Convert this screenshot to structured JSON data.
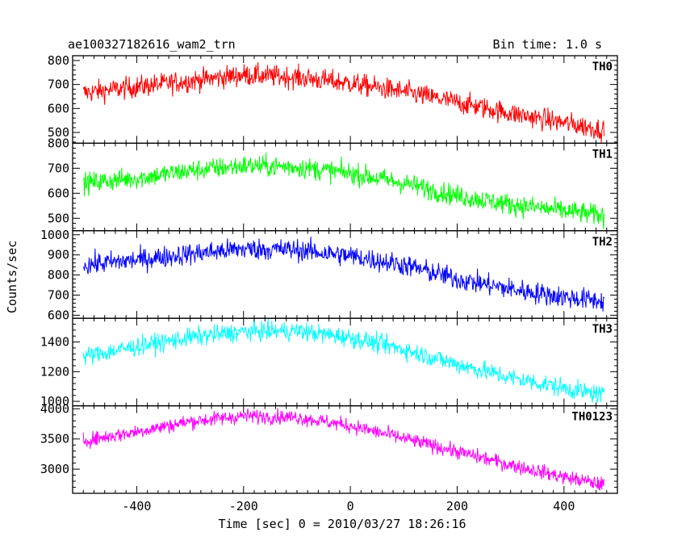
{
  "chart_data": {
    "type": "line",
    "title": "ae100327182616_wam2_trn",
    "subtitle": "Bin time: 1.0 s",
    "xlabel": "Time [sec] 0 = 2010/03/27 18:26:16",
    "ylabel": "Counts/sec",
    "xlim": [
      -520,
      500
    ],
    "xticks": [
      -400,
      -200,
      0,
      200,
      400
    ],
    "x_range": [
      -500,
      475
    ],
    "grid": false,
    "panels": [
      {
        "name": "TH0",
        "color": "#ff0000",
        "ylim": [
          455,
          820
        ],
        "yticks": [
          500,
          600,
          700,
          800
        ],
        "trend_x": [
          -500,
          -400,
          -300,
          -200,
          -100,
          0,
          100,
          200,
          300,
          400,
          475
        ],
        "trend_y": [
          665,
          690,
          715,
          740,
          730,
          705,
          670,
          625,
          580,
          540,
          510
        ],
        "noise": 32
      },
      {
        "name": "TH1",
        "color": "#00ff00",
        "ylim": [
          450,
          800
        ],
        "yticks": [
          500,
          600,
          700,
          800
        ],
        "trend_x": [
          -500,
          -400,
          -300,
          -200,
          -100,
          0,
          100,
          200,
          300,
          400,
          475
        ],
        "trend_y": [
          640,
          660,
          690,
          710,
          705,
          680,
          640,
          590,
          555,
          530,
          510
        ],
        "noise": 30
      },
      {
        "name": "TH2",
        "color": "#0000ff",
        "ylim": [
          585,
          1020
        ],
        "yticks": [
          600,
          700,
          800,
          900,
          1000
        ],
        "trend_x": [
          -500,
          -400,
          -300,
          -200,
          -100,
          0,
          100,
          200,
          300,
          400,
          475
        ],
        "trend_y": [
          850,
          875,
          905,
          930,
          925,
          895,
          850,
          780,
          730,
          690,
          670
        ],
        "noise": 38
      },
      {
        "name": "TH3",
        "color": "#00ffff",
        "ylim": [
          970,
          1560
        ],
        "yticks": [
          1000,
          1200,
          1400
        ],
        "trend_x": [
          -500,
          -400,
          -300,
          -200,
          -100,
          0,
          100,
          200,
          300,
          400,
          475
        ],
        "trend_y": [
          1300,
          1370,
          1430,
          1470,
          1475,
          1430,
          1350,
          1250,
          1160,
          1090,
          1040
        ],
        "noise": 45
      },
      {
        "name": "TH0123",
        "color": "#ff00ff",
        "ylim": [
          2600,
          4050
        ],
        "yticks": [
          3000,
          3500,
          4000
        ],
        "trend_x": [
          -500,
          -400,
          -300,
          -200,
          -100,
          0,
          100,
          200,
          300,
          400,
          475
        ],
        "trend_y": [
          3470,
          3620,
          3790,
          3880,
          3860,
          3720,
          3510,
          3290,
          3070,
          2870,
          2740
        ],
        "noise": 85
      }
    ]
  }
}
